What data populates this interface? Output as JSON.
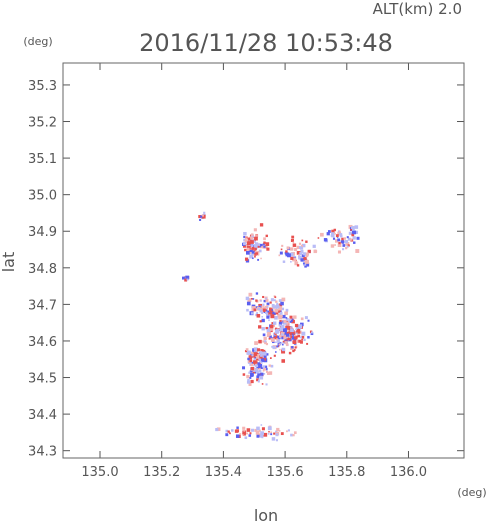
{
  "header": {
    "altitude_label": "ALT(km)  2.0",
    "timestamp": "2016/11/28 10:53:48"
  },
  "chart_data": {
    "type": "scatter",
    "title": "",
    "xlabel": "lon",
    "ylabel": "lat",
    "x_unit": "(deg)",
    "y_unit": "(deg)",
    "xlim": [
      134.88,
      136.18
    ],
    "ylim": [
      34.28,
      35.36
    ],
    "x_ticks": [
      135.0,
      135.2,
      135.4,
      135.6,
      135.8,
      136.0
    ],
    "y_ticks": [
      34.3,
      34.4,
      34.5,
      34.6,
      34.7,
      34.8,
      34.9,
      35.0,
      35.1,
      35.2,
      35.3
    ],
    "x_tick_labels": [
      "135.0",
      "135.2",
      "135.4",
      "135.6",
      "135.8",
      "136.0"
    ],
    "y_tick_labels": [
      "34.3",
      "34.4",
      "34.5",
      "34.6",
      "34.7",
      "34.8",
      "34.9",
      "35.0",
      "35.1",
      "35.2",
      "35.3"
    ],
    "grid": false,
    "colors": {
      "positive": "#e8504f",
      "negative": "#5a5ff0",
      "light_positive": "#f4b6b5",
      "light_negative": "#b9bcf6",
      "axis": "#555555"
    },
    "clusters": [
      {
        "lon": 135.5,
        "lat": 34.86,
        "spread_lon": 0.04,
        "spread_lat": 0.04,
        "count": 90
      },
      {
        "lon": 135.64,
        "lat": 34.84,
        "spread_lon": 0.05,
        "spread_lat": 0.04,
        "count": 70
      },
      {
        "lon": 135.78,
        "lat": 34.88,
        "spread_lon": 0.05,
        "spread_lat": 0.03,
        "count": 50
      },
      {
        "lon": 135.54,
        "lat": 34.69,
        "spread_lon": 0.06,
        "spread_lat": 0.03,
        "count": 110
      },
      {
        "lon": 135.6,
        "lat": 34.62,
        "spread_lon": 0.07,
        "spread_lat": 0.05,
        "count": 220
      },
      {
        "lon": 135.51,
        "lat": 34.54,
        "spread_lon": 0.04,
        "spread_lat": 0.05,
        "count": 140
      },
      {
        "lon": 135.52,
        "lat": 34.35,
        "spread_lon": 0.12,
        "spread_lat": 0.015,
        "count": 60
      },
      {
        "lon": 135.33,
        "lat": 34.94,
        "spread_lon": 0.01,
        "spread_lat": 0.01,
        "count": 8
      },
      {
        "lon": 135.28,
        "lat": 34.77,
        "spread_lon": 0.01,
        "spread_lat": 0.01,
        "count": 6
      },
      {
        "lon": 135.82,
        "lat": 34.9,
        "spread_lon": 0.01,
        "spread_lat": 0.02,
        "count": 10
      }
    ]
  }
}
